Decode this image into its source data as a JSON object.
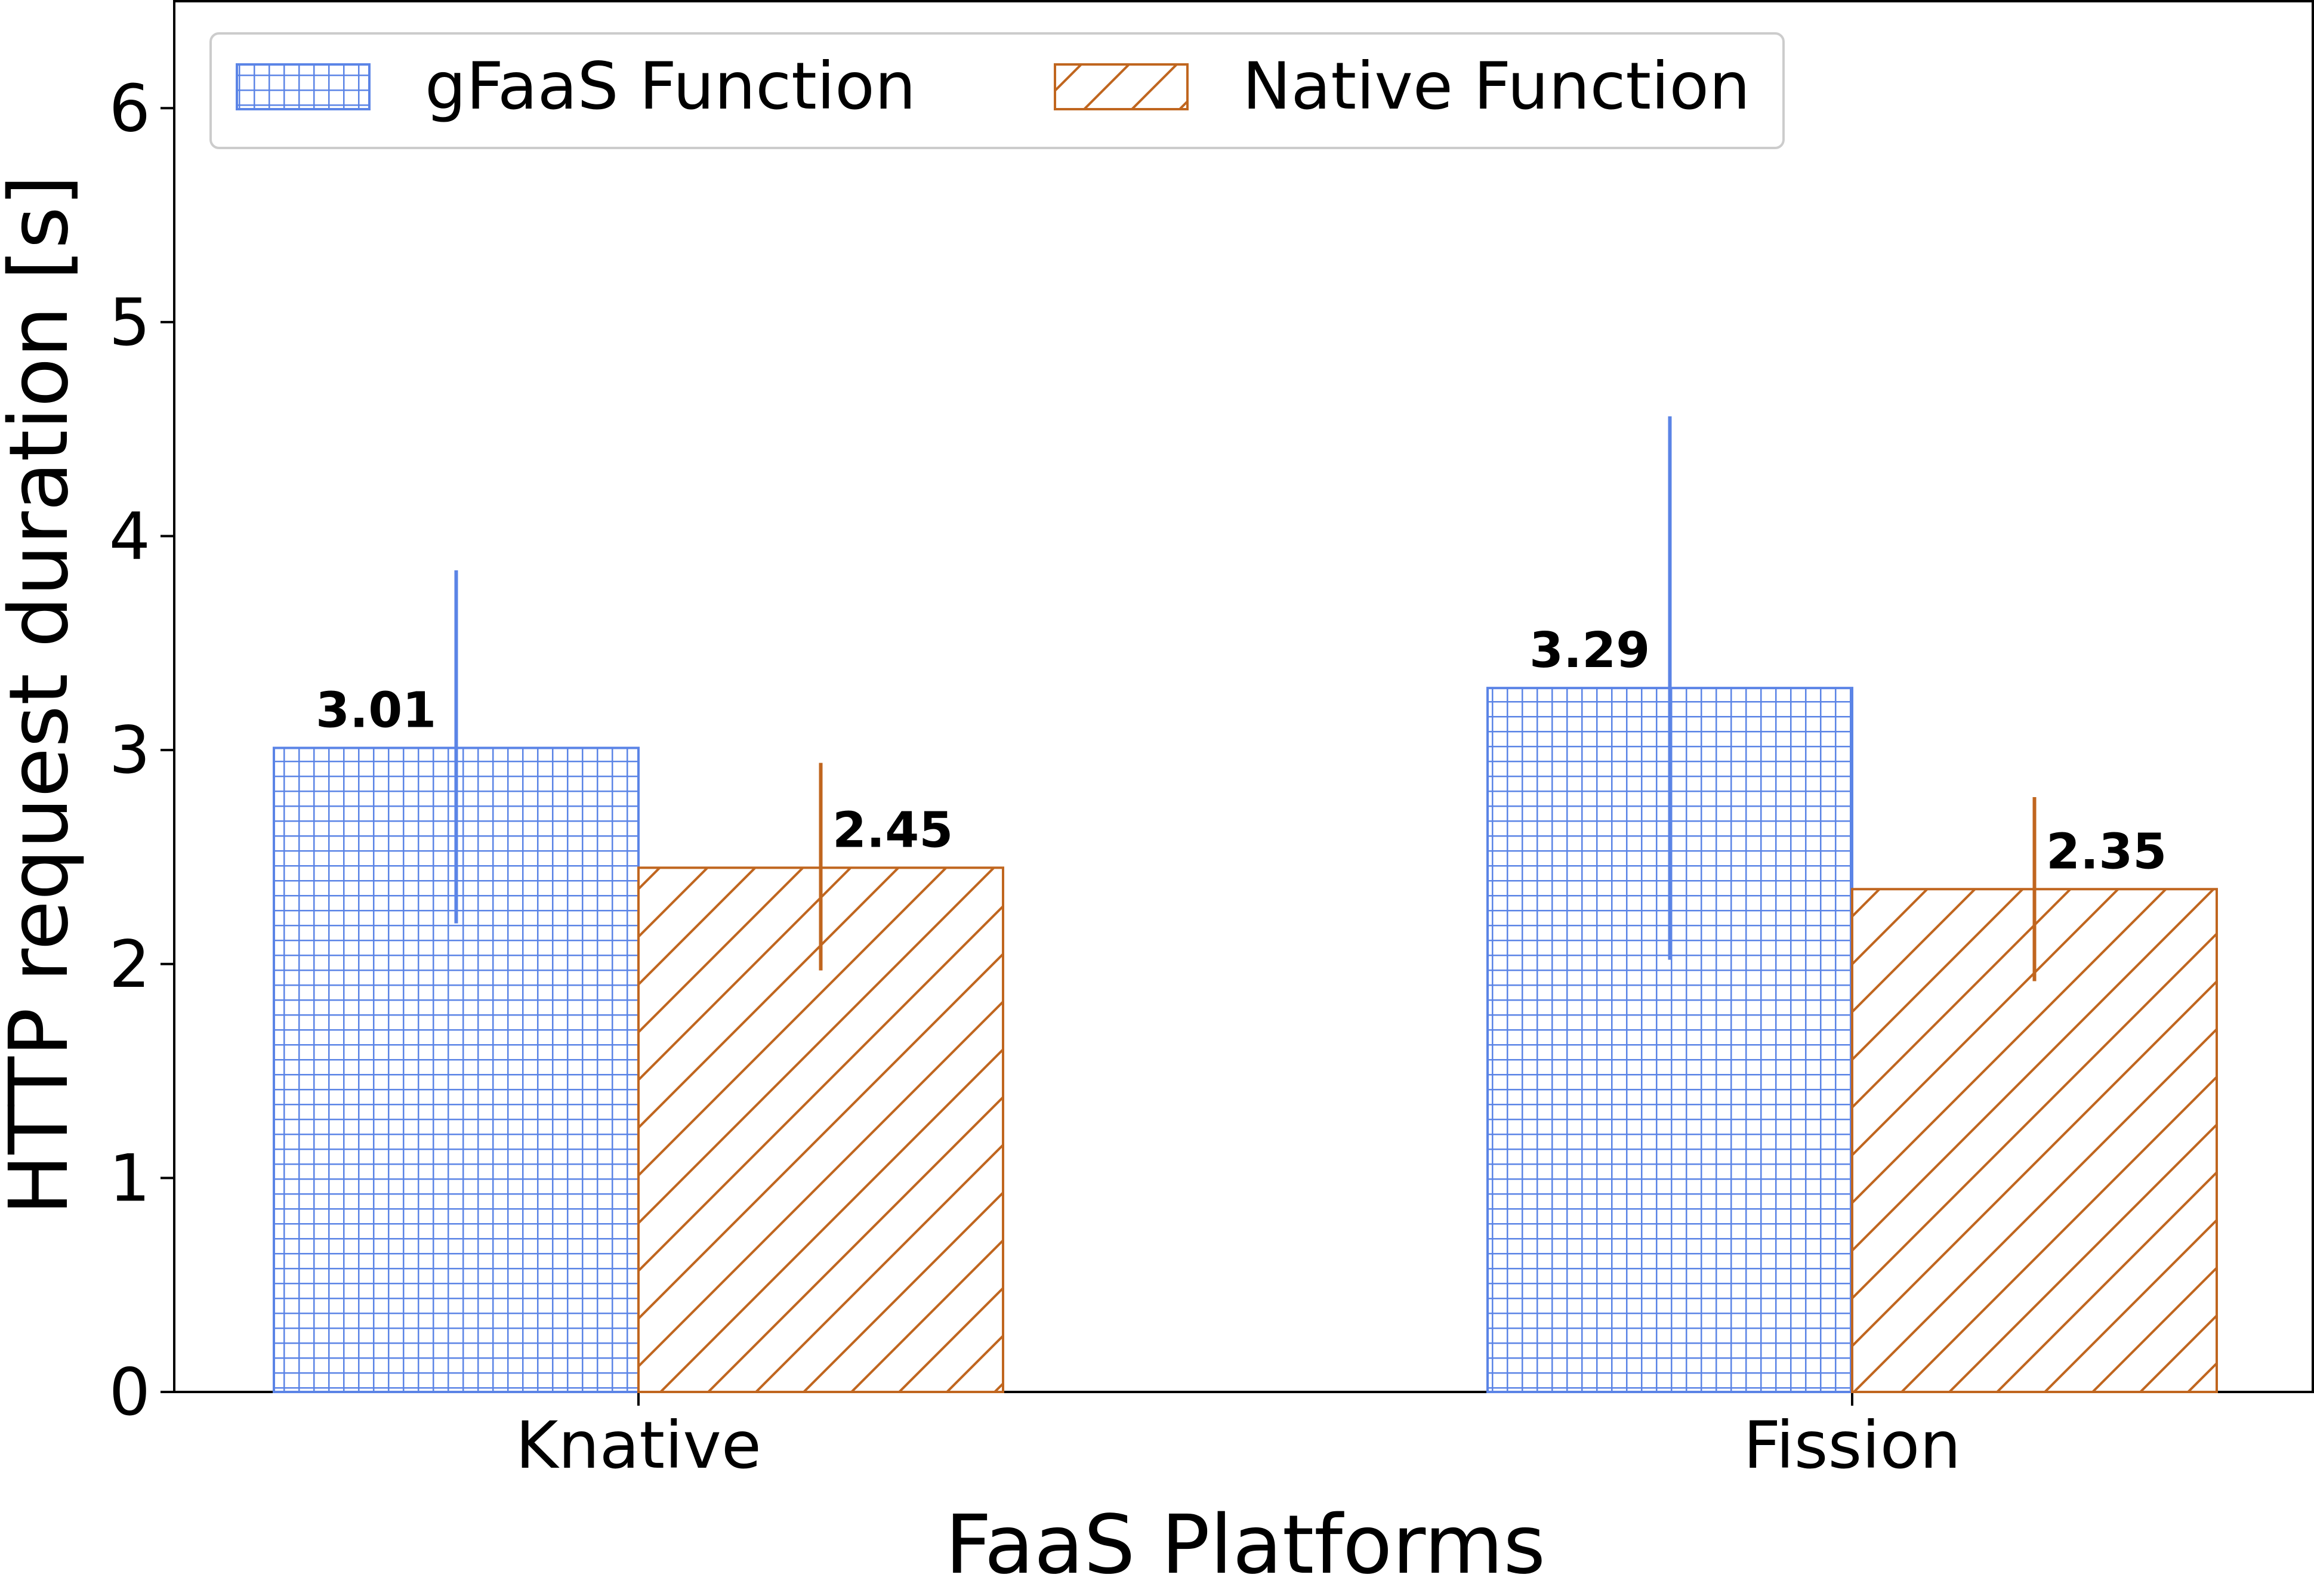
{
  "chart_data": {
    "type": "bar",
    "xlabel": "FaaS Platforms",
    "ylabel": "HTTP request duration [s]",
    "ylim": [
      0,
      6.5
    ],
    "yticks": [
      0,
      1,
      2,
      3,
      4,
      5,
      6
    ],
    "categories": [
      "Knative",
      "Fission"
    ],
    "grid": false,
    "legend_position": "top-left",
    "series": [
      {
        "name": "gFaaS Function",
        "color": "#5b84e6",
        "hatch": "grid",
        "values": [
          3.01,
          3.29
        ],
        "error_low": [
          2.19,
          2.02
        ],
        "error_high": [
          3.84,
          4.56
        ],
        "value_labels": [
          "3.01",
          "3.29"
        ]
      },
      {
        "name": "Native Function",
        "color": "#c0661f",
        "hatch": "diagonal",
        "values": [
          2.45,
          2.35
        ],
        "error_low": [
          1.97,
          1.92
        ],
        "error_high": [
          2.94,
          2.78
        ],
        "value_labels": [
          "2.45",
          "2.35"
        ]
      }
    ]
  }
}
